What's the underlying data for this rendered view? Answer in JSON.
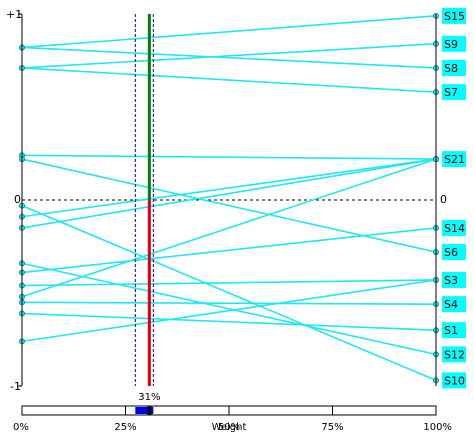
{
  "chart_data": {
    "type": "line",
    "ylim": [
      -1,
      1
    ],
    "y_tick_labels": {
      "top": "+1",
      "zero_left": "0",
      "zero_right": "0",
      "bottom": "-1"
    },
    "weight_percent": 31,
    "weight_label": "31%",
    "weight_axis": {
      "title": "Weight",
      "ticks": [
        "0%",
        "25%",
        "50%",
        "75%",
        "100%"
      ]
    },
    "series": [
      {
        "name": "S15",
        "start": 0.82,
        "end": 0.99
      },
      {
        "name": "S9",
        "start": 0.71,
        "end": 0.84
      },
      {
        "name": "S8",
        "start": 0.82,
        "end": 0.71
      },
      {
        "name": "S7",
        "start": 0.71,
        "end": 0.58
      },
      {
        "name": "S21",
        "start": 0.24,
        "end": 0.22
      },
      {
        "name": "S21",
        "start": -0.15,
        "end": 0.22
      },
      {
        "name": "S21",
        "start": -0.52,
        "end": 0.22
      },
      {
        "name": "S21",
        "start": -0.09,
        "end": 0.22
      },
      {
        "name": "S14",
        "start": -0.39,
        "end": -0.15
      },
      {
        "name": "S6",
        "start": 0.22,
        "end": -0.28
      },
      {
        "name": "S3",
        "start": -0.46,
        "end": -0.43
      },
      {
        "name": "S3",
        "start": -0.76,
        "end": -0.43
      },
      {
        "name": "S4",
        "start": -0.55,
        "end": -0.56
      },
      {
        "name": "S1",
        "start": -0.61,
        "end": -0.7
      },
      {
        "name": "S12",
        "start": -0.34,
        "end": -0.83
      },
      {
        "name": "S10",
        "start": -0.03,
        "end": -0.97
      }
    ],
    "end_labels": [
      "S15",
      "S9",
      "S8",
      "S7",
      "S21",
      "S14",
      "S6",
      "S3",
      "S4",
      "S1",
      "S12",
      "S10"
    ]
  }
}
